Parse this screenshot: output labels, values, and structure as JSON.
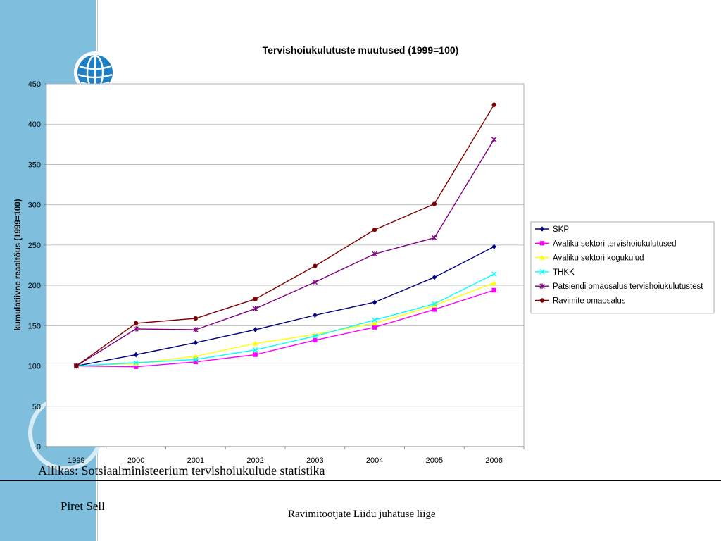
{
  "slide": {
    "source_text": "Allikas: Sotsiaalministeerium tervishoiukulude statistika",
    "author": "Piret Sell",
    "role": "Ravimitootjate Liidu juhatuse liige"
  },
  "chart_data": {
    "type": "line",
    "title": "Tervishoiukulutuste muutused (1999=100)",
    "xlabel": "",
    "ylabel": "kumulatiivne reaaltõus (1999=100)",
    "categories": [
      "1999",
      "2000",
      "2001",
      "2002",
      "2003",
      "2004",
      "2005",
      "2006"
    ],
    "ylim": [
      0,
      450
    ],
    "yticks": [
      0,
      50,
      100,
      150,
      200,
      250,
      300,
      350,
      400,
      450
    ],
    "grid": true,
    "legend_position": "right",
    "series": [
      {
        "name": "SKP",
        "color": "#000080",
        "marker": "diamond",
        "values": [
          100,
          114,
          129,
          145,
          163,
          179,
          210,
          248
        ]
      },
      {
        "name": "Avaliku sektori tervishoiukulutused",
        "color": "#ff00ff",
        "marker": "square",
        "values": [
          100,
          99,
          105,
          114,
          132,
          148,
          170,
          194
        ]
      },
      {
        "name": "Avaliku sektori kogukulud",
        "color": "#ffff00",
        "marker": "triangle",
        "values": [
          100,
          103,
          112,
          128,
          139,
          153,
          175,
          203
        ]
      },
      {
        "name": "THKK",
        "color": "#00ffff",
        "marker": "x",
        "values": [
          100,
          104,
          108,
          120,
          137,
          157,
          177,
          214
        ]
      },
      {
        "name": "Patsiendi omaosalus tervishoiukulutustest",
        "color": "#800080",
        "marker": "star",
        "values": [
          100,
          146,
          145,
          171,
          204,
          239,
          259,
          381
        ]
      },
      {
        "name": "Ravimite omaosalus",
        "color": "#800000",
        "marker": "circle",
        "values": [
          100,
          153,
          159,
          183,
          224,
          269,
          301,
          424
        ]
      }
    ]
  }
}
